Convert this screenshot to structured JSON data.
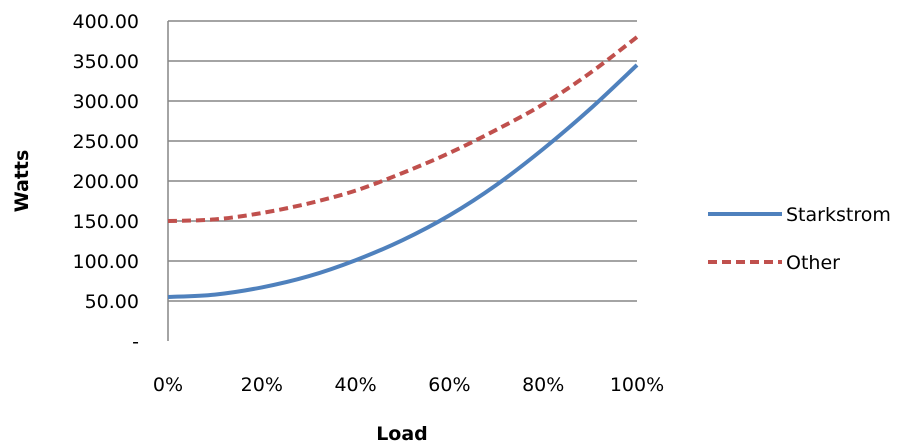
{
  "chart_data": {
    "type": "line",
    "title": "",
    "xlabel": "Load",
    "ylabel": "Watts",
    "x": [
      0,
      10,
      20,
      30,
      40,
      50,
      60,
      70,
      80,
      90,
      100
    ],
    "x_tick_labels": [
      "0%",
      "20%",
      "40%",
      "60%",
      "80%",
      "100%"
    ],
    "x_ticks": [
      0,
      20,
      40,
      60,
      80,
      100
    ],
    "xlim": [
      0,
      100
    ],
    "y_tick_labels": [
      "400.00",
      "350.00",
      "300.00",
      "250.00",
      "200.00",
      "150.00",
      "100.00",
      "50.00",
      "-"
    ],
    "y_ticks": [
      400,
      350,
      300,
      250,
      200,
      150,
      100,
      50,
      0
    ],
    "ylim": [
      0,
      400
    ],
    "grid": true,
    "legend_position": "right",
    "series": [
      {
        "name": "Starkstrom",
        "color": "#4F81BD",
        "style": "solid",
        "values": [
          55,
          58,
          67,
          81,
          101,
          126,
          157,
          195,
          240,
          290,
          345
        ]
      },
      {
        "name": "Other",
        "color": "#C0504D",
        "style": "dashed",
        "values": [
          150,
          152,
          160,
          172,
          188,
          210,
          235,
          264,
          296,
          335,
          380
        ]
      }
    ]
  }
}
